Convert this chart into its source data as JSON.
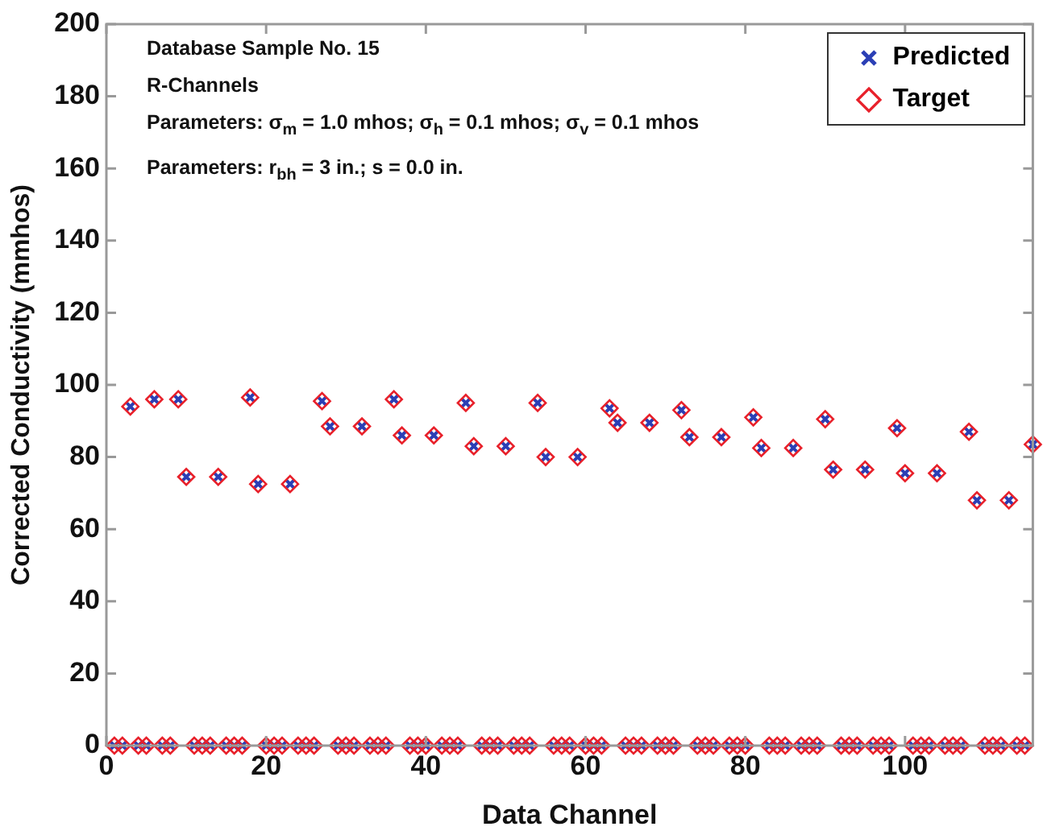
{
  "chart_data": {
    "type": "scatter",
    "xlabel": "Data Channel",
    "ylabel": "Corrected Conductivity (mmhos)",
    "annotations": [
      "Database Sample No. 15",
      "R-Channels",
      "Parameters: σ$_{m}$ = 1.0 mhos; σ$_{h}$ = 0.1 mhos; σ$_{v}$ = 0.1 mhos",
      "Parameters: r$_{bh}$ = 3 in.; s = 0.0 in."
    ],
    "x": [
      1,
      2,
      3,
      4,
      5,
      6,
      7,
      8,
      9,
      10,
      11,
      12,
      13,
      14,
      15,
      16,
      17,
      18,
      19,
      20,
      21,
      22,
      23,
      24,
      25,
      26,
      27,
      28,
      29,
      30,
      31,
      32,
      33,
      34,
      35,
      36,
      37,
      38,
      39,
      40,
      41,
      42,
      43,
      44,
      45,
      46,
      47,
      48,
      49,
      50,
      51,
      52,
      53,
      54,
      55,
      56,
      57,
      58,
      59,
      60,
      61,
      62,
      63,
      64,
      65,
      66,
      67,
      68,
      69,
      70,
      71,
      72,
      73,
      74,
      75,
      76,
      77,
      78,
      79,
      80,
      81,
      82,
      83,
      84,
      85,
      86,
      87,
      88,
      89,
      90,
      91,
      92,
      93,
      94,
      95,
      96,
      97,
      98,
      99,
      100,
      101,
      102,
      103,
      104,
      105,
      106,
      107,
      108,
      109,
      110,
      111,
      112,
      113,
      114,
      115,
      116
    ],
    "series": [
      {
        "name": "Predicted",
        "color": "#2b3fb5",
        "marker": "cross",
        "values": [
          0,
          0,
          94,
          0,
          0,
          96,
          0,
          0,
          96,
          74.5,
          0,
          0,
          0,
          74.5,
          0,
          0,
          0,
          96.5,
          72.5,
          0,
          0,
          0,
          72.5,
          0,
          0,
          0,
          95.5,
          88.5,
          0,
          0,
          0,
          88.5,
          0,
          0,
          0,
          96,
          86,
          0,
          0,
          0,
          86,
          0,
          0,
          0,
          95,
          83,
          0,
          0,
          0,
          83,
          0,
          0,
          0,
          95,
          80,
          0,
          0,
          0,
          80,
          0,
          0,
          0,
          93.5,
          89.5,
          0,
          0,
          0,
          89.5,
          0,
          0,
          0,
          93,
          85.5,
          0,
          0,
          0,
          85.5,
          0,
          0,
          0,
          91,
          82.5,
          0,
          0,
          0,
          82.5,
          0,
          0,
          0,
          90.5,
          76.5,
          0,
          0,
          0,
          76.5,
          0,
          0,
          0,
          88,
          75.5,
          0,
          0,
          0,
          75.5,
          0,
          0,
          0,
          87,
          68,
          0,
          0,
          0,
          68,
          0,
          0,
          83.5
        ]
      },
      {
        "name": "Target",
        "color": "#e8202a",
        "marker": "diamond",
        "values": [
          0,
          0,
          94,
          0,
          0,
          96,
          0,
          0,
          96,
          74.5,
          0,
          0,
          0,
          74.5,
          0,
          0,
          0,
          96.5,
          72.5,
          0,
          0,
          0,
          72.5,
          0,
          0,
          0,
          95.5,
          88.5,
          0,
          0,
          0,
          88.5,
          0,
          0,
          0,
          96,
          86,
          0,
          0,
          0,
          86,
          0,
          0,
          0,
          95,
          83,
          0,
          0,
          0,
          83,
          0,
          0,
          0,
          95,
          80,
          0,
          0,
          0,
          80,
          0,
          0,
          0,
          93.5,
          89.5,
          0,
          0,
          0,
          89.5,
          0,
          0,
          0,
          93,
          85.5,
          0,
          0,
          0,
          85.5,
          0,
          0,
          0,
          91,
          82.5,
          0,
          0,
          0,
          82.5,
          0,
          0,
          0,
          90.5,
          76.5,
          0,
          0,
          0,
          76.5,
          0,
          0,
          0,
          88,
          75.5,
          0,
          0,
          0,
          75.5,
          0,
          0,
          0,
          87,
          68,
          0,
          0,
          0,
          68,
          0,
          0,
          83.5
        ]
      }
    ],
    "xlim": [
      0,
      116
    ],
    "xticks": [
      0,
      20,
      40,
      60,
      80,
      100
    ],
    "ylim": [
      0,
      200
    ],
    "yticks": [
      0,
      20,
      40,
      60,
      80,
      100,
      120,
      140,
      160,
      180,
      200
    ],
    "grid": false,
    "legend": "top right"
  }
}
